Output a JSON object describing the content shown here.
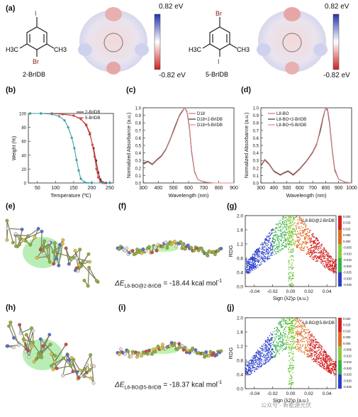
{
  "labels": {
    "a": "(a)",
    "b": "(b)",
    "c": "(c)",
    "d": "(d)",
    "e": "(e)",
    "f": "(f)",
    "g": "(g)",
    "h": "(h)",
    "i": "(i)",
    "j": "(j)"
  },
  "panel_a": {
    "mol1": {
      "name": "2-BrIDB",
      "top_atom": "I",
      "bottom_atom": "Br",
      "methyl_left": "H3C",
      "methyl_right": "CH3"
    },
    "mol2": {
      "name": "5-BrIDB",
      "top_atom": "Br",
      "bottom_atom": "I",
      "methyl_left": "H3C",
      "methyl_right": "CH3"
    },
    "colorbar_max": "0.82 eV",
    "colorbar_min": "-0.82 eV"
  },
  "energies": {
    "f": {
      "prefix": "ΔE",
      "sub": "L8-BO@2-BrIDB",
      "value": "= -18.44 kcal mol",
      "sup": "-1"
    },
    "i": {
      "prefix": "ΔE",
      "sub": "L8-BO@5-BrIDB",
      "value": "= -18.37 kcal mol",
      "sup": "-1"
    }
  },
  "watermark": "公众号 · 新能源光伏",
  "chart_data": [
    {
      "id": "b",
      "type": "line",
      "xlabel": "Temperature (ºC)",
      "ylabel": "Weight (%)",
      "xlim": [
        25,
        260
      ],
      "ylim": [
        0,
        100
      ],
      "xticks": [
        50,
        100,
        150,
        200,
        250
      ],
      "yticks": [
        0,
        20,
        40,
        60,
        80,
        100
      ],
      "series": [
        {
          "name": "2-BrIDB",
          "color": "#7a1f1f",
          "x": [
            30,
            60,
            90,
            120,
            150,
            170,
            185,
            195,
            205,
            212,
            218,
            224,
            230,
            240,
            250
          ],
          "y": [
            100,
            100,
            100,
            99,
            97,
            92,
            83,
            70,
            50,
            32,
            15,
            5,
            1,
            0,
            0
          ]
        },
        {
          "name": "5-BrIDB",
          "color": "#d64848",
          "x": [
            30,
            60,
            90,
            120,
            150,
            170,
            185,
            195,
            202,
            208,
            213,
            218,
            224,
            235,
            250
          ],
          "y": [
            100,
            100,
            100,
            99,
            97,
            92,
            84,
            72,
            55,
            38,
            20,
            8,
            2,
            0,
            0
          ]
        },
        {
          "name": "",
          "color": "#3aa0a8",
          "x": [
            30,
            60,
            90,
            110,
            125,
            135,
            145,
            152,
            158,
            164,
            170,
            180,
            200,
            230,
            250
          ],
          "y": [
            100,
            100,
            99,
            96,
            90,
            80,
            65,
            50,
            33,
            18,
            6,
            1,
            0,
            0,
            0
          ]
        }
      ]
    },
    {
      "id": "c",
      "type": "line",
      "xlabel": "Wavelength (nm)",
      "ylabel": "Normalized Absorbance (a.u.)",
      "xlim": [
        300,
        900
      ],
      "ylim": [
        0,
        1.0
      ],
      "xticks": [
        300,
        400,
        500,
        600,
        700,
        800,
        900
      ],
      "yticks": [
        0.0,
        0.1,
        0.2,
        0.3,
        0.4,
        0.5,
        0.6,
        0.7,
        0.8,
        0.9,
        1.0
      ],
      "series": [
        {
          "name": "D18",
          "color": "#d07070",
          "x": [
            300,
            330,
            360,
            390,
            420,
            450,
            480,
            510,
            540,
            560,
            575,
            590,
            605,
            620,
            640,
            660,
            690,
            720,
            760,
            800,
            850,
            900
          ],
          "y": [
            0.25,
            0.28,
            0.24,
            0.3,
            0.35,
            0.44,
            0.58,
            0.74,
            0.9,
            0.96,
            1.0,
            0.95,
            0.75,
            0.42,
            0.15,
            0.05,
            0.02,
            0.01,
            0.0,
            0.0,
            0.0,
            0.0
          ]
        },
        {
          "name": "D18+2-BrIDB",
          "color": "#333333",
          "x": [
            300,
            330,
            360,
            390,
            420,
            450,
            480,
            510,
            540,
            560,
            575,
            590,
            605,
            620,
            640,
            660,
            690,
            720,
            760,
            800,
            850,
            900
          ],
          "y": [
            0.26,
            0.29,
            0.25,
            0.31,
            0.36,
            0.45,
            0.59,
            0.75,
            0.9,
            0.96,
            1.0,
            0.94,
            0.74,
            0.41,
            0.15,
            0.05,
            0.02,
            0.01,
            0.0,
            0.0,
            0.0,
            0.0
          ]
        },
        {
          "name": "D18+5-BrIDB",
          "color": "#e08a8a",
          "x": [
            300,
            330,
            360,
            390,
            420,
            450,
            480,
            510,
            540,
            560,
            575,
            590,
            605,
            620,
            640,
            660,
            690,
            720,
            760,
            800,
            850,
            900
          ],
          "y": [
            0.24,
            0.28,
            0.24,
            0.3,
            0.35,
            0.44,
            0.58,
            0.73,
            0.89,
            0.95,
            1.0,
            0.95,
            0.76,
            0.43,
            0.16,
            0.05,
            0.02,
            0.01,
            0.0,
            0.0,
            0.0,
            0.0
          ]
        }
      ]
    },
    {
      "id": "d",
      "type": "line",
      "xlabel": "Wavelength (nm)",
      "ylabel": "Normalized Absorbance (a.u.)",
      "xlim": [
        300,
        1000
      ],
      "ylim": [
        0,
        1.0
      ],
      "xticks": [
        300,
        400,
        500,
        600,
        700,
        800,
        900,
        1000
      ],
      "yticks": [
        0.0,
        0.1,
        0.2,
        0.3,
        0.4,
        0.5,
        0.6,
        0.7,
        0.8,
        0.9,
        1.0
      ],
      "series": [
        {
          "name": "L8-BO",
          "color": "#d07070",
          "x": [
            300,
            330,
            360,
            400,
            450,
            480,
            510,
            550,
            600,
            650,
            700,
            730,
            760,
            780,
            800,
            815,
            830,
            850,
            870,
            900,
            950,
            1000
          ],
          "y": [
            0.22,
            0.3,
            0.25,
            0.15,
            0.1,
            0.13,
            0.15,
            0.1,
            0.18,
            0.28,
            0.4,
            0.5,
            0.72,
            0.88,
            1.0,
            0.97,
            0.8,
            0.45,
            0.18,
            0.05,
            0.01,
            0.0
          ]
        },
        {
          "name": "L8-BO+2-BrIDB",
          "color": "#333333",
          "x": [
            300,
            330,
            360,
            400,
            450,
            480,
            510,
            550,
            600,
            650,
            700,
            730,
            760,
            780,
            800,
            815,
            830,
            850,
            870,
            900,
            950,
            1000
          ],
          "y": [
            0.23,
            0.31,
            0.26,
            0.16,
            0.11,
            0.14,
            0.16,
            0.11,
            0.19,
            0.29,
            0.41,
            0.52,
            0.7,
            0.87,
            1.0,
            0.96,
            0.79,
            0.44,
            0.17,
            0.05,
            0.01,
            0.0
          ]
        },
        {
          "name": "L8-BO+5-BrIDB",
          "color": "#e08a8a",
          "x": [
            300,
            330,
            360,
            400,
            450,
            480,
            510,
            550,
            600,
            650,
            700,
            730,
            760,
            780,
            800,
            815,
            830,
            850,
            870,
            900,
            950,
            1000
          ],
          "y": [
            0.22,
            0.3,
            0.25,
            0.15,
            0.1,
            0.13,
            0.15,
            0.1,
            0.18,
            0.28,
            0.4,
            0.51,
            0.74,
            0.89,
            1.0,
            0.98,
            0.82,
            0.46,
            0.19,
            0.05,
            0.01,
            0.0
          ]
        }
      ]
    },
    {
      "id": "g",
      "type": "scatter",
      "title": "L8-BO@2-BrIDB",
      "xlabel": "Sign (λ2)ρ (a.u.)",
      "ylabel": "RDG",
      "xlim": [
        -0.05,
        0.05
      ],
      "ylim": [
        0,
        2.0
      ],
      "xticks": [
        -0.04,
        -0.02,
        0.0,
        0.02,
        0.04
      ],
      "yticks": [
        0.0,
        0.4,
        0.8,
        1.2,
        1.6,
        2.0
      ],
      "colorbar_ticks": [
        "0.020",
        "0.015",
        "0.010",
        "0.005",
        "0.000",
        "-0.005",
        "-0.010",
        "-0.015",
        "-0.020",
        "-0.025",
        "-0.030",
        "-0.035"
      ]
    },
    {
      "id": "j",
      "type": "scatter",
      "title": "L8-BO@5-BrIDB",
      "xlabel": "Sign (λ2)ρ (a.u.)",
      "ylabel": "RDG",
      "xlim": [
        -0.05,
        0.05
      ],
      "ylim": [
        0,
        2.0
      ],
      "xticks": [
        -0.04,
        -0.02,
        0.0,
        0.02,
        0.04
      ],
      "yticks": [
        0.0,
        0.4,
        0.8,
        1.2,
        1.6,
        2.0
      ],
      "colorbar_ticks": [
        "0.020",
        "0.015",
        "0.010",
        "0.005",
        "0.000",
        "-0.005",
        "-0.010",
        "-0.015",
        "-0.020",
        "-0.025",
        "-0.030",
        "-0.035"
      ]
    }
  ]
}
